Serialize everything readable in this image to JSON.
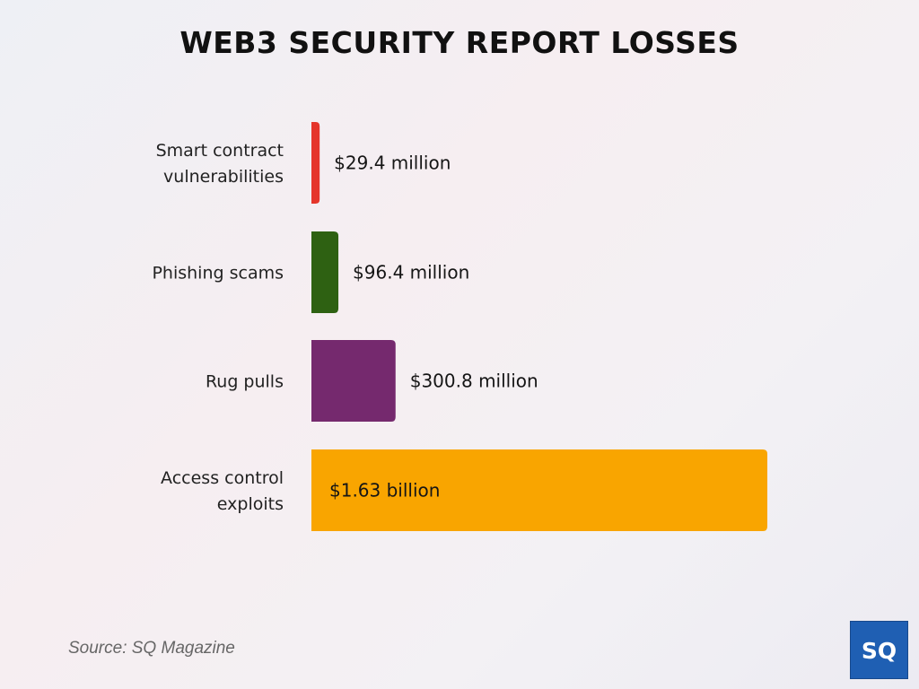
{
  "title": "WEB3 SECURITY REPORT LOSSES",
  "source": "Source: SQ Magazine",
  "logo": {
    "text": "SQ",
    "bg_color": "#1f5fb3"
  },
  "chart_data": {
    "type": "bar",
    "orientation": "horizontal",
    "categories": [
      [
        "Smart contract",
        "vulnerabilities"
      ],
      [
        "Phishing scams"
      ],
      [
        "Rug pulls"
      ],
      [
        "Access control",
        "exploits"
      ]
    ],
    "values": [
      29.4,
      96.4,
      300.8,
      1630
    ],
    "unit": "million USD",
    "value_labels": [
      "$29.4 million",
      "$96.4 million",
      "$300.8 million",
      "$1.63 billion"
    ],
    "colors": [
      "#e5352b",
      "#2e6112",
      "#75296e",
      "#f9a500"
    ],
    "xlim": [
      0,
      1630
    ],
    "grid": false,
    "legend": "none"
  }
}
